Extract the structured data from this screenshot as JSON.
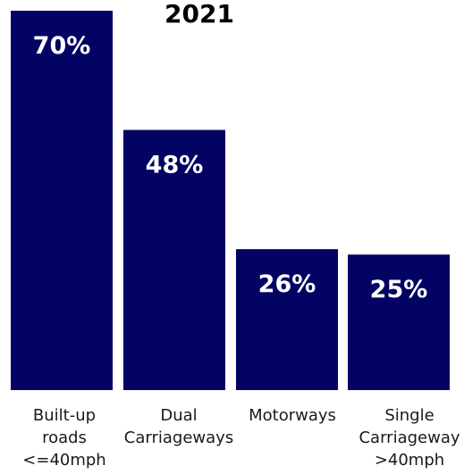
{
  "chart_data": {
    "type": "bar",
    "title": "2021",
    "categories": [
      [
        "Built-up",
        "roads",
        "<=40mph"
      ],
      [
        "Dual",
        "Carriageways"
      ],
      [
        "Motorways"
      ],
      [
        "Single",
        "Carriageway",
        ">40mph"
      ]
    ],
    "values": [
      70,
      48,
      26,
      25
    ],
    "value_labels": [
      "70%",
      "48%",
      "26%",
      "25%"
    ],
    "ylim": [
      0,
      70
    ],
    "grid": false,
    "legend": "none",
    "colors": {
      "bar": "#030363",
      "value_text": "#ffffff",
      "axis_text": "#1a1a1a",
      "title": "#000000"
    }
  }
}
